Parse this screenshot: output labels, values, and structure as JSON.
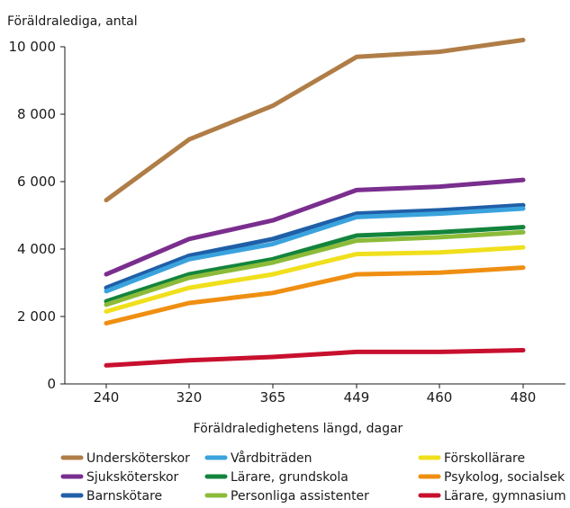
{
  "chart_data": {
    "type": "line",
    "ylabel": "Föräldralediga, antal",
    "xlabel": "Föräldraledighetens längd, dagar",
    "x": [
      "240",
      "320",
      "365",
      "449",
      "460",
      "480"
    ],
    "ylim": [
      0,
      10000
    ],
    "yticks": [
      {
        "value": 0,
        "label": "0"
      },
      {
        "value": 2000,
        "label": "2 000"
      },
      {
        "value": 4000,
        "label": "4 000"
      },
      {
        "value": 6000,
        "label": "6 000"
      },
      {
        "value": 8000,
        "label": "8 000"
      },
      {
        "value": 10000,
        "label": "10 000"
      }
    ],
    "grid": false,
    "legend_position": "bottom",
    "series": [
      {
        "name": "Undersköterskor",
        "color": "#b07d47",
        "values": [
          5450,
          7250,
          8250,
          9700,
          9850,
          10200
        ]
      },
      {
        "name": "Sjuksköterskor",
        "color": "#7a2e8e",
        "values": [
          3250,
          4300,
          4850,
          5750,
          5850,
          6050
        ]
      },
      {
        "name": "Barnskötare",
        "color": "#1f5fa8",
        "values": [
          2850,
          3800,
          4300,
          5050,
          5150,
          5300
        ]
      },
      {
        "name": "Vårdbiträden",
        "color": "#3aa3dd",
        "values": [
          2750,
          3700,
          4150,
          4950,
          5050,
          5200
        ]
      },
      {
        "name": "Lärare, grundskola",
        "color": "#13843c",
        "values": [
          2450,
          3250,
          3700,
          4400,
          4500,
          4650
        ]
      },
      {
        "name": "Personliga assistenter",
        "color": "#8cbb3a",
        "values": [
          2350,
          3150,
          3600,
          4250,
          4350,
          4500
        ]
      },
      {
        "name": "Förskollärare",
        "color": "#f0df1c",
        "values": [
          2150,
          2850,
          3250,
          3850,
          3900,
          4050
        ]
      },
      {
        "name": "Psykolog, socialsek",
        "color": "#ef8f12",
        "values": [
          1800,
          2400,
          2700,
          3250,
          3300,
          3450
        ]
      },
      {
        "name": "Lärare, gymnasium",
        "color": "#c8102e",
        "values": [
          550,
          700,
          800,
          950,
          950,
          1000
        ]
      }
    ]
  }
}
